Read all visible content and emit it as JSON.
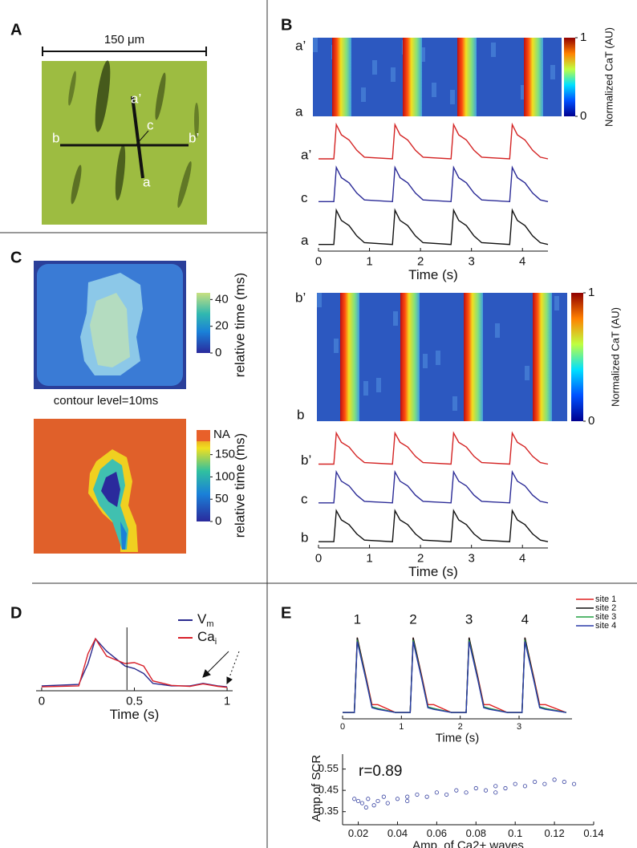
{
  "panel_labels": [
    "A",
    "B",
    "C",
    "D",
    "E"
  ],
  "panel_a": {
    "scale_bar": "150 μm",
    "labels": [
      "a’",
      "a",
      "b",
      "b’",
      "c"
    ]
  },
  "colorbars": [
    {
      "label": "Normalized CaT (AU)",
      "lim": [
        0,
        1
      ],
      "ticks": [
        0,
        1
      ]
    },
    {
      "label": "Normalized CaT (AU)",
      "lim": [
        0,
        1
      ],
      "ticks": [
        0,
        1
      ]
    },
    {
      "label": "relative time (ms)",
      "lim": [
        0,
        45
      ],
      "ticks": [
        0,
        20,
        40
      ],
      "note": "contour level=10ms"
    },
    {
      "label": "relative time (ms)",
      "lim": [
        0,
        180
      ],
      "ticks": [
        0,
        50,
        100,
        150
      ],
      "top_label": "NA"
    }
  ],
  "chart_data": [
    {
      "type": "line",
      "xlabel": "Time (s)",
      "xlim": [
        0,
        4.5
      ],
      "xticks": [
        0,
        1,
        2,
        3,
        4
      ],
      "ylim": [
        -0.1,
        2.9
      ],
      "x": [
        0,
        0.3,
        0.35,
        0.45,
        0.6,
        0.75,
        0.9,
        1.45,
        1.5,
        1.6,
        1.75,
        1.9,
        2.05,
        2.6,
        2.65,
        2.75,
        2.9,
        3.05,
        3.2,
        3.75,
        3.8,
        3.9,
        4.05,
        4.2,
        4.35,
        4.5
      ],
      "series": [
        {
          "name": "a’",
          "color": "#d42424",
          "values": [
            2,
            2,
            2.8,
            2.56,
            2.44,
            2.2,
            2.04,
            2,
            2.8,
            2.56,
            2.44,
            2.2,
            2.04,
            2,
            2.8,
            2.56,
            2.44,
            2.2,
            2.04,
            2,
            2.8,
            2.56,
            2.44,
            2.2,
            2.04,
            2
          ]
        },
        {
          "name": "c",
          "color": "#2a2a96",
          "values": [
            1,
            1,
            1.8,
            1.56,
            1.44,
            1.2,
            1.04,
            1,
            1.8,
            1.56,
            1.44,
            1.2,
            1.04,
            1,
            1.8,
            1.56,
            1.44,
            1.2,
            1.04,
            1,
            1.8,
            1.56,
            1.44,
            1.2,
            1.04,
            1
          ]
        },
        {
          "name": "a",
          "color": "#111111",
          "values": [
            0,
            0,
            0.8,
            0.56,
            0.44,
            0.2,
            0.04,
            0,
            0.8,
            0.56,
            0.44,
            0.2,
            0.04,
            0,
            0.8,
            0.56,
            0.44,
            0.2,
            0.04,
            0,
            0.8,
            0.56,
            0.44,
            0.2,
            0.04,
            0
          ]
        }
      ]
    },
    {
      "type": "line",
      "xlabel": "Time (s)",
      "xlim": [
        0,
        4.5
      ],
      "xticks": [
        0,
        1,
        2,
        3,
        4
      ],
      "ylim": [
        -0.1,
        2.9
      ],
      "x": [
        0,
        0.3,
        0.35,
        0.45,
        0.6,
        0.75,
        0.9,
        1.45,
        1.5,
        1.6,
        1.75,
        1.9,
        2.05,
        2.6,
        2.65,
        2.75,
        2.9,
        3.05,
        3.2,
        3.75,
        3.8,
        3.9,
        4.05,
        4.2,
        4.35,
        4.5
      ],
      "series": [
        {
          "name": "b’",
          "color": "#d42424",
          "values": [
            2,
            2,
            2.8,
            2.56,
            2.44,
            2.2,
            2.04,
            2,
            2.8,
            2.56,
            2.44,
            2.2,
            2.04,
            2,
            2.8,
            2.56,
            2.44,
            2.2,
            2.04,
            2,
            2.8,
            2.56,
            2.44,
            2.2,
            2.04,
            2
          ]
        },
        {
          "name": "c",
          "color": "#2a2a96",
          "values": [
            1,
            1,
            1.8,
            1.56,
            1.44,
            1.2,
            1.04,
            1,
            1.8,
            1.56,
            1.44,
            1.2,
            1.04,
            1,
            1.8,
            1.56,
            1.44,
            1.2,
            1.04,
            1,
            1.8,
            1.56,
            1.44,
            1.2,
            1.04,
            1
          ]
        },
        {
          "name": "b",
          "color": "#111111",
          "values": [
            0,
            0,
            0.8,
            0.56,
            0.44,
            0.2,
            0.04,
            0,
            0.8,
            0.56,
            0.44,
            0.2,
            0.04,
            0,
            0.8,
            0.56,
            0.44,
            0.2,
            0.04,
            0,
            0.8,
            0.56,
            0.44,
            0.2,
            0.04,
            0
          ]
        }
      ]
    },
    {
      "type": "line",
      "xlabel": "Time (s)",
      "xlim": [
        -0.03,
        1.03
      ],
      "xticks": [
        0,
        0.5,
        1
      ],
      "ylim": [
        0,
        1.1
      ],
      "marker_x": 0.46,
      "x": [
        0,
        0.2,
        0.25,
        0.29,
        0.35,
        0.45,
        0.5,
        0.55,
        0.6,
        0.7,
        0.8,
        0.87,
        0.95,
        1
      ],
      "series": [
        {
          "name": "Vm",
          "color": "#2b2b8f",
          "values": [
            0.05,
            0.08,
            0.5,
            1.0,
            0.75,
            0.45,
            0.4,
            0.3,
            0.1,
            0.05,
            0.05,
            0.1,
            0.05,
            0.03
          ]
        },
        {
          "name": "Cai",
          "color": "#d8202a",
          "values": [
            0.03,
            0.05,
            0.7,
            1.0,
            0.65,
            0.5,
            0.52,
            0.45,
            0.15,
            0.06,
            0.04,
            0.09,
            0.04,
            0.02
          ]
        }
      ]
    },
    {
      "type": "line",
      "xlabel": "Time (s)",
      "xlim": [
        0,
        3.9
      ],
      "xticks": [
        0,
        1,
        2,
        3
      ],
      "ylim": [
        0,
        1.1
      ],
      "peak_labels": [
        "1",
        "2",
        "3",
        "4"
      ],
      "x": [
        0,
        0.2,
        0.25,
        0.4,
        0.5,
        0.6,
        0.9,
        1.15,
        1.2,
        1.35,
        1.45,
        1.55,
        1.85,
        2.1,
        2.15,
        2.3,
        2.4,
        2.5,
        2.8,
        3.05,
        3.1,
        3.25,
        3.35,
        3.45,
        3.8
      ],
      "series": [
        {
          "name": "site 1",
          "color": "#e02020",
          "values": [
            0.05,
            0.05,
            1,
            0.5,
            0.15,
            0.15,
            0.05,
            0.05,
            1,
            0.5,
            0.15,
            0.15,
            0.05,
            0.05,
            1,
            0.5,
            0.15,
            0.15,
            0.05,
            0.05,
            1,
            0.5,
            0.15,
            0.15,
            0.05
          ]
        },
        {
          "name": "site 2",
          "color": "#111111",
          "values": [
            0.05,
            0.05,
            1,
            0.48,
            0.12,
            0.1,
            0.05,
            0.05,
            1,
            0.48,
            0.12,
            0.1,
            0.05,
            0.05,
            1,
            0.48,
            0.12,
            0.1,
            0.05,
            0.05,
            1,
            0.48,
            0.12,
            0.1,
            0.05
          ]
        },
        {
          "name": "site 3",
          "color": "#20a040",
          "values": [
            0.05,
            0.05,
            0.97,
            0.47,
            0.12,
            0.1,
            0.05,
            0.05,
            0.97,
            0.47,
            0.12,
            0.1,
            0.05,
            0.05,
            0.97,
            0.47,
            0.12,
            0.1,
            0.05,
            0.05,
            0.97,
            0.47,
            0.12,
            0.1,
            0.05
          ]
        },
        {
          "name": "site 4",
          "color": "#2a3aa8",
          "values": [
            0.05,
            0.05,
            0.95,
            0.46,
            0.11,
            0.09,
            0.05,
            0.05,
            0.95,
            0.46,
            0.11,
            0.09,
            0.05,
            0.05,
            0.95,
            0.46,
            0.11,
            0.09,
            0.05,
            0.05,
            0.95,
            0.46,
            0.11,
            0.09,
            0.05
          ]
        }
      ]
    },
    {
      "type": "scatter",
      "xlabel": "Amp. of Ca2+ waves",
      "ylabel": "Amp.of SCR",
      "annotation": "r=0.89",
      "color": "#3540a0",
      "xlim": [
        0.012,
        0.14
      ],
      "xticks": [
        0.02,
        0.04,
        0.06,
        0.08,
        0.1,
        0.12,
        0.14
      ],
      "ylim": [
        0.3,
        0.62
      ],
      "yticks": [
        0.35,
        0.45,
        0.55
      ],
      "x": [
        0.02,
        0.022,
        0.025,
        0.028,
        0.03,
        0.033,
        0.035,
        0.04,
        0.045,
        0.05,
        0.055,
        0.06,
        0.065,
        0.07,
        0.075,
        0.08,
        0.085,
        0.09,
        0.095,
        0.1,
        0.105,
        0.11,
        0.115,
        0.12,
        0.125,
        0.13,
        0.018,
        0.024,
        0.045,
        0.09
      ],
      "values": [
        0.4,
        0.39,
        0.41,
        0.38,
        0.4,
        0.42,
        0.39,
        0.41,
        0.42,
        0.43,
        0.42,
        0.44,
        0.43,
        0.45,
        0.44,
        0.46,
        0.45,
        0.47,
        0.46,
        0.48,
        0.47,
        0.49,
        0.48,
        0.5,
        0.49,
        0.48,
        0.41,
        0.37,
        0.4,
        0.44
      ]
    }
  ]
}
